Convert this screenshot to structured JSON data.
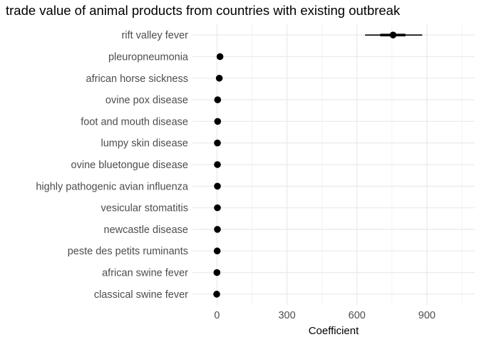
{
  "chart_data": {
    "type": "pointrange",
    "title": "trade value of animal products from countries with existing outbreak",
    "xlabel": "Coefficient",
    "ylabel": "",
    "xlim": [
      -105,
      1105
    ],
    "x_ticks": [
      0,
      300,
      600,
      900
    ],
    "x_tick_labels": [
      "0",
      "300",
      "600",
      "900"
    ],
    "x_minor_ticks": [
      150,
      450,
      750,
      1050
    ],
    "grid": true,
    "categories": [
      "rift valley fever",
      "pleuropneumonia",
      "african horse sickness",
      "ovine pox disease",
      "foot and mouth disease",
      "lumpy skin disease",
      "ovine bluetongue disease",
      "highly pathogenic avian influenza",
      "vesicular stomatitis",
      "newcastle disease",
      "peste des petits ruminants",
      "african swine fever",
      "classical swine fever"
    ],
    "series": [
      {
        "estimate": [
          755,
          13,
          10,
          3,
          3,
          2,
          2,
          2,
          2,
          2,
          1,
          0,
          -1
        ],
        "ci_inner": [
          [
            700,
            808
          ],
          null,
          null,
          null,
          null,
          null,
          null,
          null,
          null,
          null,
          null,
          null,
          null
        ],
        "ci_outer": [
          [
            635,
            880
          ],
          null,
          null,
          null,
          null,
          null,
          null,
          null,
          null,
          null,
          null,
          null,
          null
        ]
      }
    ]
  }
}
